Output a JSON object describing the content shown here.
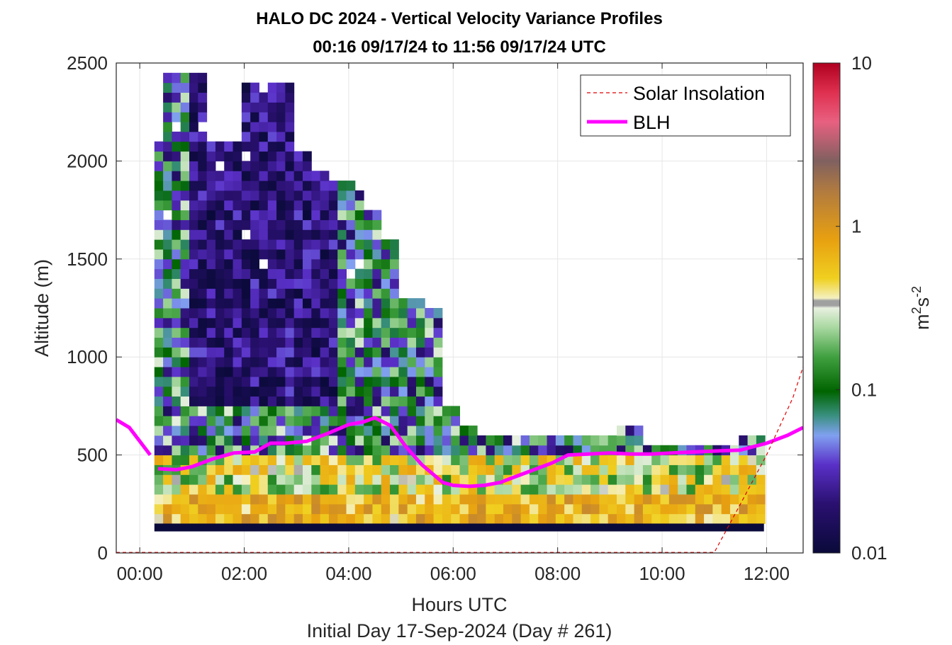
{
  "chart_data": {
    "type": "heatmap",
    "title": "HALO DC 2024 - Vertical Velocity Variance Profiles",
    "subtitle": "00:16 09/17/24 to 11:56 09/17/24  UTC",
    "xlabel": "Hours UTC",
    "xlabel2": "Initial Day 17-Sep-2024 (Day # 261)",
    "ylabel": "Altitude (m)",
    "colorbar_label_base": "m",
    "colorbar_label_exp1": "2",
    "colorbar_label_mid": "s",
    "colorbar_label_exp2": "-2",
    "xlim": [
      -0.45,
      12.7
    ],
    "ylim": [
      0,
      2500
    ],
    "x_ticks": [
      {
        "value": 0,
        "label": "00:00"
      },
      {
        "value": 2,
        "label": "02:00"
      },
      {
        "value": 4,
        "label": "04:00"
      },
      {
        "value": 6,
        "label": "06:00"
      },
      {
        "value": 8,
        "label": "08:00"
      },
      {
        "value": 10,
        "label": "10:00"
      },
      {
        "value": 12,
        "label": "12:00"
      }
    ],
    "y_ticks": [
      0,
      500,
      1000,
      1500,
      2000,
      2500
    ],
    "color_scale": "log",
    "colorbar_range": [
      0.01,
      10
    ],
    "colorbar_ticks": [
      {
        "value": 0.01,
        "label": "0.01"
      },
      {
        "value": 0.1,
        "label": "0.1"
      },
      {
        "value": 1,
        "label": "1"
      },
      {
        "value": 10,
        "label": "10"
      }
    ],
    "grid": true,
    "legend_position": "top-right",
    "series": [
      {
        "name": "BLH",
        "type": "line",
        "color": "#ff00ff",
        "x": [
          -0.45,
          -0.2,
          0.2,
          0.3,
          0.35,
          0.7,
          1.0,
          1.4,
          1.8,
          2.2,
          2.5,
          2.8,
          3.2,
          3.6,
          4.0,
          4.3,
          4.5,
          4.8,
          5.1,
          5.4,
          5.8,
          6.0,
          6.3,
          6.6,
          6.9,
          7.2,
          7.6,
          7.9,
          8.2,
          8.6,
          9.0,
          9.4,
          9.8,
          10.2,
          10.6,
          11.0,
          11.5,
          12.0,
          12.4,
          12.7
        ],
        "y": [
          680,
          640,
          500,
          null,
          430,
          425,
          440,
          480,
          510,
          515,
          560,
          560,
          570,
          610,
          655,
          670,
          690,
          650,
          540,
          450,
          360,
          345,
          340,
          345,
          360,
          390,
          430,
          460,
          500,
          505,
          510,
          505,
          505,
          510,
          515,
          520,
          525,
          560,
          600,
          640
        ]
      },
      {
        "name": "Solar Insolation",
        "type": "line",
        "color": "#e00000",
        "dash": "dashed",
        "x": [
          -0.45,
          11.0,
          11.5,
          12.0,
          12.5,
          12.7
        ],
        "y": [
          3,
          3,
          250,
          500,
          790,
          950
        ]
      }
    ]
  }
}
